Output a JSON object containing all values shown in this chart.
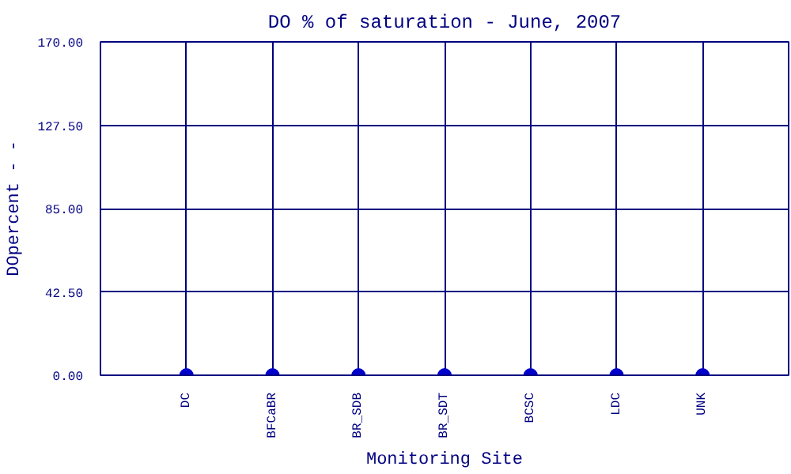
{
  "chart_data": {
    "type": "scatter",
    "title": "DO % of saturation - June, 2007",
    "xlabel": "Monitoring Site",
    "ylabel": "DOpercent - -",
    "categories": [
      "DC",
      "BFCaBR",
      "BR_SDB",
      "BR_SDT",
      "BCSC",
      "LDC",
      "UNK"
    ],
    "series": [
      {
        "color": "#0000cc",
        "values": [
          0,
          0,
          0,
          0,
          0,
          0,
          0
        ]
      }
    ],
    "ylim": [
      0,
      170
    ],
    "yticks": [
      {
        "value": 0,
        "label": "0.00"
      },
      {
        "value": 42.5,
        "label": "42.50"
      },
      {
        "value": 85,
        "label": "85.00"
      },
      {
        "value": 127.5,
        "label": "127.50"
      },
      {
        "value": 170,
        "label": "170.00"
      }
    ],
    "grid": true,
    "marker": "circle"
  }
}
